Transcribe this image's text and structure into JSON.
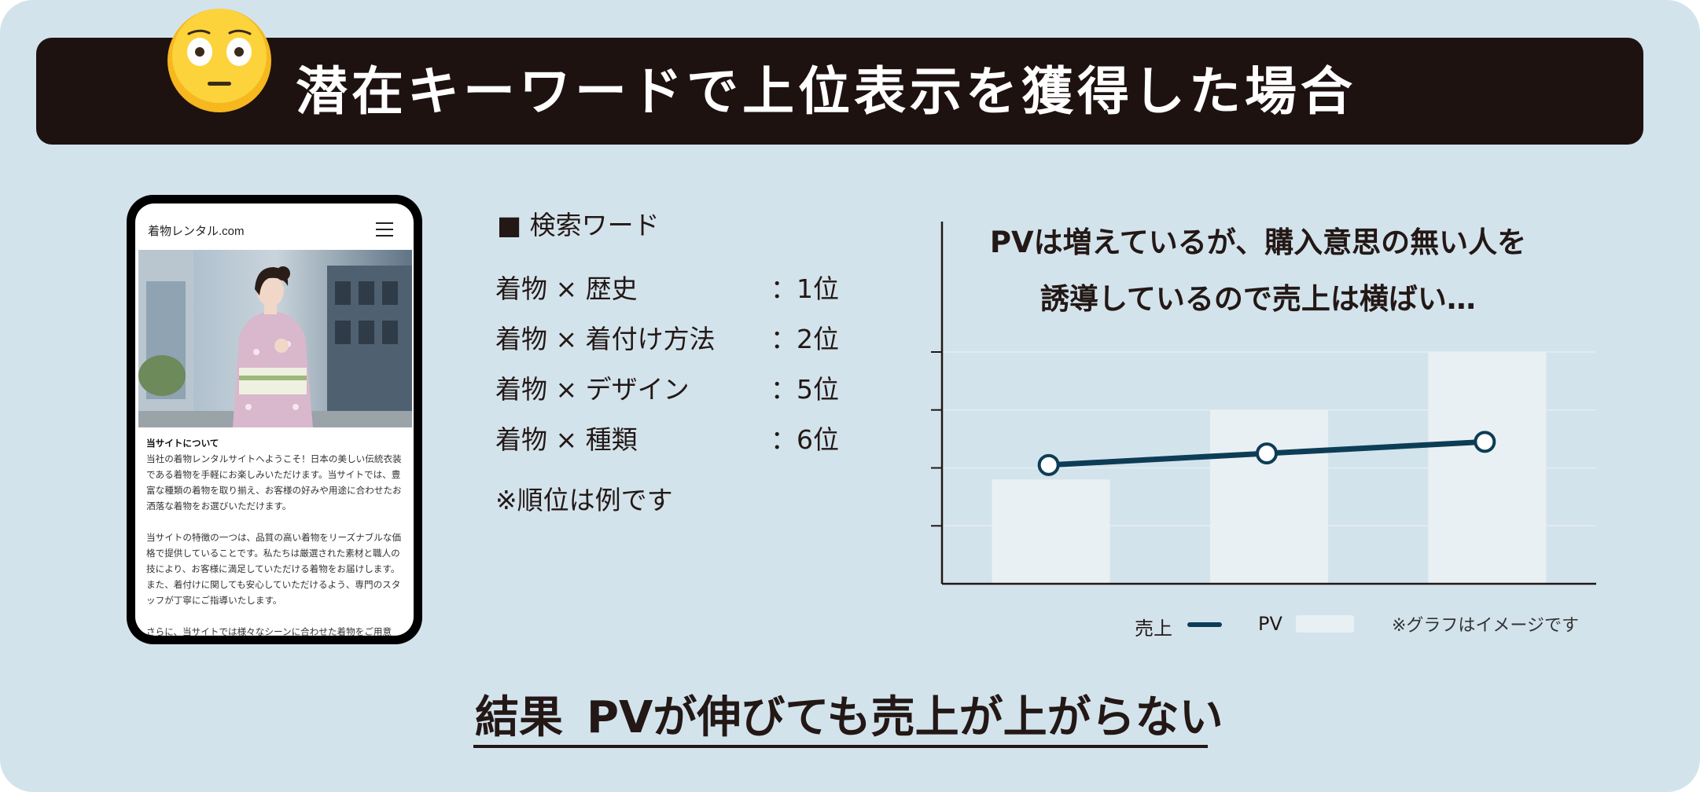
{
  "banner": {
    "title": "潜在キーワードで上位表示を獲得した場合",
    "emoji": "flushed-face-icon"
  },
  "phone": {
    "site_name": "着物レンタル.com",
    "menu_icon": "hamburger-menu-icon",
    "article_title": "当サイトについて",
    "paragraphs": [
      "当社の着物レンタルサイトへようこそ！日本の美しい伝統衣装である着物を手軽にお楽しみいただけます。当サイトでは、豊富な種類の着物を取り揃え、お客様の好みや用途に合わせたお洒落な着物をお選びいただけます。",
      "当サイトの特徴の一つは、品質の高い着物をリーズナブルな価格で提供していることです。私たちは厳選された素材と職人の技により、お客様に満足していただける着物をお届けします。また、着付けに関しても安心していただけるよう、専門のスタッフが丁寧にご指導いたします。",
      "さらに、当サイトでは様々なシーンに合わせた着物をご用意"
    ]
  },
  "keywords": {
    "heading": "■ 検索ワード",
    "rows": [
      {
        "term": "着物 × 歴史",
        "rank": "：1位"
      },
      {
        "term": "着物 × 着付け方法",
        "rank": "：2位"
      },
      {
        "term": "着物 × デザイン",
        "rank": "：5位"
      },
      {
        "term": "着物 × 種類",
        "rank": "：6位"
      }
    ],
    "note": "※順位は例です"
  },
  "chart_data": {
    "type": "bar",
    "title_lines": [
      "PVは増えているが、購入意思の無い人を",
      "誘導しているので売上は横ばい…"
    ],
    "categories": [
      "",
      "",
      ""
    ],
    "ylim": [
      0,
      4
    ],
    "grid": true,
    "legend_position": "bottom-right",
    "series": [
      {
        "name": "PV",
        "type": "bar",
        "values": [
          1.8,
          3.0,
          4.0
        ],
        "color": "#e9f0f4"
      },
      {
        "name": "売上",
        "type": "line",
        "values": [
          2.05,
          2.25,
          2.45
        ],
        "color": "#0d3d56"
      }
    ],
    "note": "※グラフはイメージです"
  },
  "result": {
    "label": "結果",
    "text": "PVが伸びても売上が上がらない"
  }
}
